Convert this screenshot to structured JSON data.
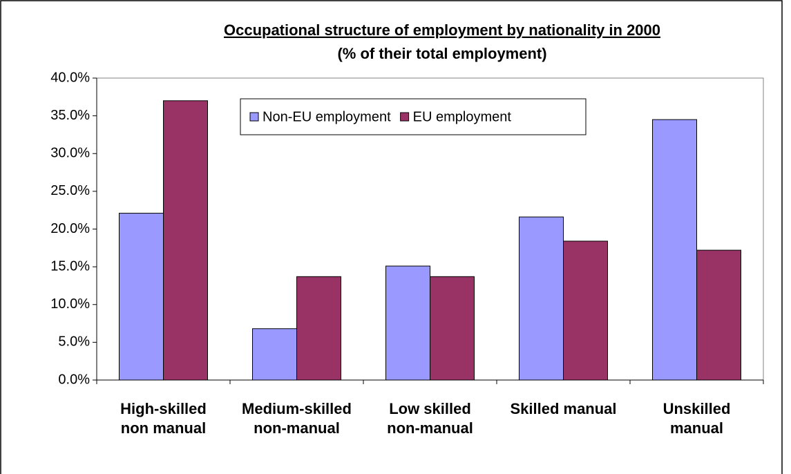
{
  "chart_data": {
    "type": "bar",
    "title": "Occupational structure of employment by nationality in 2000",
    "subtitle": "(% of their total employment)",
    "categories": [
      "High-skilled non manual",
      "Medium-skilled non-manual",
      "Low skilled non-manual",
      "Skilled manual",
      "Unskilled manual"
    ],
    "series": [
      {
        "name": "Non-EU employment",
        "color": "#9999ff",
        "values": [
          22.1,
          6.8,
          15.1,
          21.6,
          34.5
        ]
      },
      {
        "name": "EU employment",
        "color": "#993366",
        "values": [
          37.0,
          13.7,
          13.7,
          18.4,
          17.2
        ]
      }
    ],
    "ylim": [
      0,
      40
    ],
    "yticks": [
      {
        "value": 0,
        "label": "0.0%"
      },
      {
        "value": 5,
        "label": "5.0%"
      },
      {
        "value": 10,
        "label": "10.0%"
      },
      {
        "value": 15,
        "label": "15.0%"
      },
      {
        "value": 20,
        "label": "20.0%"
      },
      {
        "value": 25,
        "label": "25.0%"
      },
      {
        "value": 30,
        "label": "30.0%"
      },
      {
        "value": 35,
        "label": "35.0%"
      },
      {
        "value": 40,
        "label": "40.0%"
      }
    ],
    "grid": false,
    "legend": "top"
  }
}
